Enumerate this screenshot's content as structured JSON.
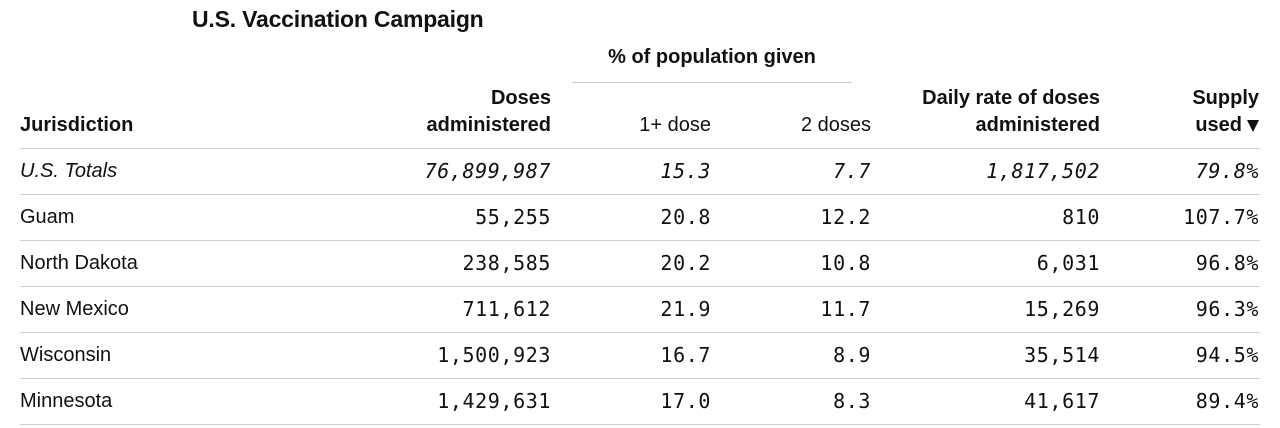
{
  "title": "U.S. Vaccination Campaign",
  "group_header": "% of population given",
  "columns": {
    "jurisdiction": "Jurisdiction",
    "doses_line1": "Doses",
    "doses_line2": "administered",
    "one_dose": "1+ dose",
    "two_doses": "2 doses",
    "daily_line1": "Daily rate of doses",
    "daily_line2": "administered",
    "supply_line1": "Supply",
    "supply_line2": "used",
    "supply_sort_icon": "triangle-down"
  },
  "rows": [
    {
      "name": "U.S. Totals",
      "doses": "76,899,987",
      "one_dose": "15.3",
      "two_doses": "7.7",
      "daily": "1,817,502",
      "supply": "79.8%"
    },
    {
      "name": "Guam",
      "doses": "55,255",
      "one_dose": "20.8",
      "two_doses": "12.2",
      "daily": "810",
      "supply": "107.7%"
    },
    {
      "name": "North Dakota",
      "doses": "238,585",
      "one_dose": "20.2",
      "two_doses": "10.8",
      "daily": "6,031",
      "supply": "96.8%"
    },
    {
      "name": "New Mexico",
      "doses": "711,612",
      "one_dose": "21.9",
      "two_doses": "11.7",
      "daily": "15,269",
      "supply": "96.3%"
    },
    {
      "name": "Wisconsin",
      "doses": "1,500,923",
      "one_dose": "16.7",
      "two_doses": "8.9",
      "daily": "35,514",
      "supply": "94.5%"
    },
    {
      "name": "Minnesota",
      "doses": "1,429,631",
      "one_dose": "17.0",
      "two_doses": "8.3",
      "daily": "41,617",
      "supply": "89.4%"
    }
  ],
  "colors": {
    "text": "#111111",
    "rule": "#cfcfcf",
    "background": "#ffffff"
  }
}
